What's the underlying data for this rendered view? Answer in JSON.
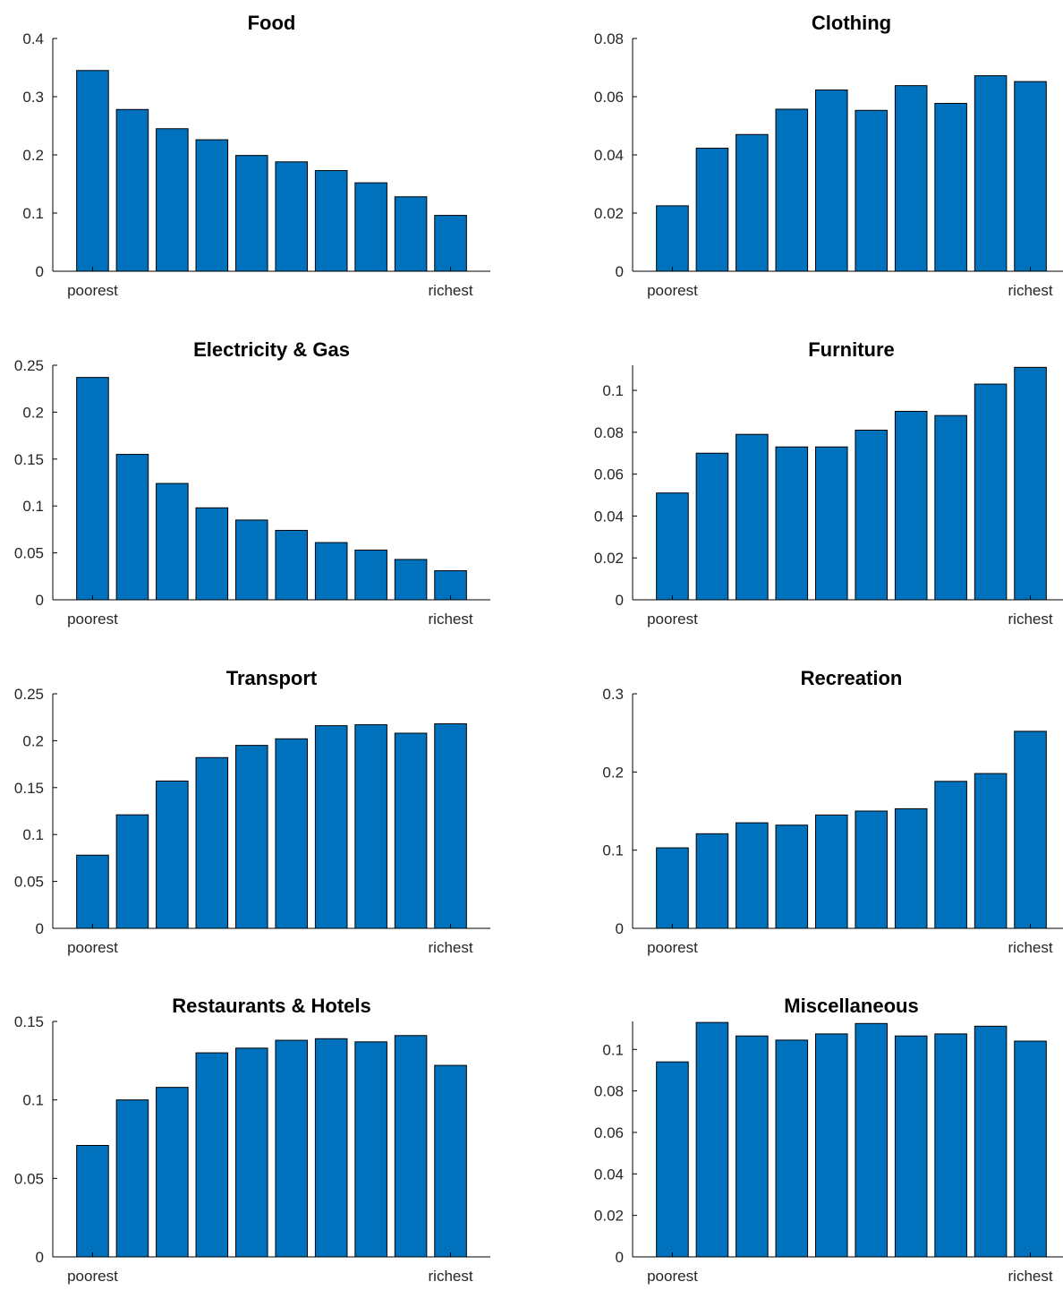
{
  "chart_data": [
    {
      "type": "bar",
      "title": "Food",
      "categories": [
        "1",
        "2",
        "3",
        "4",
        "5",
        "6",
        "7",
        "8",
        "9",
        "10"
      ],
      "x_tick_labels": [
        "poorest",
        "richest"
      ],
      "ylim": [
        0,
        0.4
      ],
      "yticks": [
        0,
        0.1,
        0.2,
        0.3,
        0.4
      ],
      "values": [
        0.345,
        0.278,
        0.245,
        0.226,
        0.199,
        0.188,
        0.173,
        0.152,
        0.128,
        0.096
      ]
    },
    {
      "type": "bar",
      "title": "Clothing",
      "categories": [
        "1",
        "2",
        "3",
        "4",
        "5",
        "6",
        "7",
        "8",
        "9",
        "10"
      ],
      "x_tick_labels": [
        "poorest",
        "richest"
      ],
      "ylim": [
        0,
        0.08
      ],
      "yticks": [
        0,
        0.02,
        0.04,
        0.06,
        0.08
      ],
      "values": [
        0.0225,
        0.0423,
        0.047,
        0.0557,
        0.0623,
        0.0553,
        0.0638,
        0.0577,
        0.0672,
        0.0652
      ]
    },
    {
      "type": "bar",
      "title": "Electricity & Gas",
      "categories": [
        "1",
        "2",
        "3",
        "4",
        "5",
        "6",
        "7",
        "8",
        "9",
        "10"
      ],
      "x_tick_labels": [
        "poorest",
        "richest"
      ],
      "ylim": [
        0,
        0.25
      ],
      "yticks": [
        0,
        0.05,
        0.1,
        0.15,
        0.2,
        0.25
      ],
      "values": [
        0.237,
        0.155,
        0.124,
        0.098,
        0.085,
        0.074,
        0.061,
        0.053,
        0.043,
        0.031
      ]
    },
    {
      "type": "bar",
      "title": "Furniture",
      "categories": [
        "1",
        "2",
        "3",
        "4",
        "5",
        "6",
        "7",
        "8",
        "9",
        "10"
      ],
      "x_tick_labels": [
        "poorest",
        "richest"
      ],
      "ylim": [
        0,
        0.112
      ],
      "yticks": [
        0,
        0.02,
        0.04,
        0.06,
        0.08,
        0.1
      ],
      "values": [
        0.051,
        0.07,
        0.079,
        0.073,
        0.073,
        0.081,
        0.09,
        0.088,
        0.103,
        0.111
      ]
    },
    {
      "type": "bar",
      "title": "Transport",
      "categories": [
        "1",
        "2",
        "3",
        "4",
        "5",
        "6",
        "7",
        "8",
        "9",
        "10"
      ],
      "x_tick_labels": [
        "poorest",
        "richest"
      ],
      "ylim": [
        0,
        0.25
      ],
      "yticks": [
        0,
        0.05,
        0.1,
        0.15,
        0.2,
        0.25
      ],
      "values": [
        0.078,
        0.121,
        0.157,
        0.182,
        0.195,
        0.202,
        0.216,
        0.217,
        0.208,
        0.218
      ]
    },
    {
      "type": "bar",
      "title": "Recreation",
      "categories": [
        "1",
        "2",
        "3",
        "4",
        "5",
        "6",
        "7",
        "8",
        "9",
        "10"
      ],
      "x_tick_labels": [
        "poorest",
        "richest"
      ],
      "ylim": [
        0,
        0.3
      ],
      "yticks": [
        0,
        0.1,
        0.2,
        0.3
      ],
      "values": [
        0.103,
        0.121,
        0.135,
        0.132,
        0.145,
        0.15,
        0.153,
        0.188,
        0.198,
        0.252
      ]
    },
    {
      "type": "bar",
      "title": "Restaurants & Hotels",
      "categories": [
        "1",
        "2",
        "3",
        "4",
        "5",
        "6",
        "7",
        "8",
        "9",
        "10"
      ],
      "x_tick_labels": [
        "poorest",
        "richest"
      ],
      "ylim": [
        0,
        0.15
      ],
      "yticks": [
        0,
        0.05,
        0.1,
        0.15
      ],
      "values": [
        0.071,
        0.1,
        0.108,
        0.13,
        0.133,
        0.138,
        0.139,
        0.137,
        0.141,
        0.122
      ]
    },
    {
      "type": "bar",
      "title": "Miscellaneous",
      "categories": [
        "1",
        "2",
        "3",
        "4",
        "5",
        "6",
        "7",
        "8",
        "9",
        "10"
      ],
      "x_tick_labels": [
        "poorest",
        "richest"
      ],
      "ylim": [
        0,
        0.1135
      ],
      "yticks": [
        0,
        0.02,
        0.04,
        0.06,
        0.08,
        0.1
      ],
      "values": [
        0.094,
        0.113,
        0.1065,
        0.1045,
        0.1075,
        0.1125,
        0.1065,
        0.1075,
        0.1112,
        0.104
      ]
    }
  ],
  "colors": {
    "bar_fill": "#0072bd",
    "bar_edge": "#000000"
  }
}
